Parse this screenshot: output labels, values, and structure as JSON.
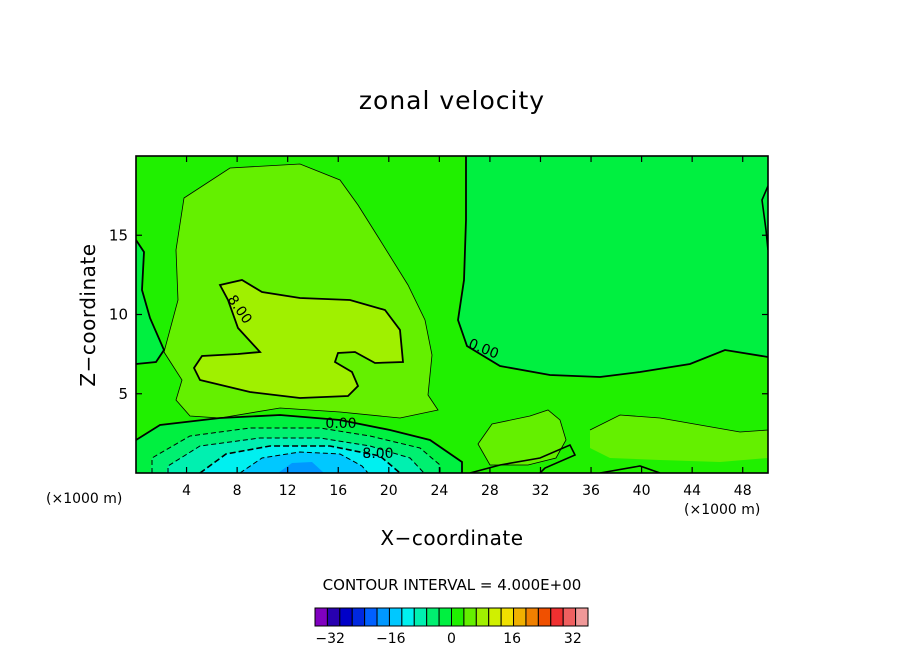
{
  "chart_data": {
    "type": "heatmap",
    "title": "zonal velocity",
    "xlabel": "X−coordinate",
    "ylabel": "Z−coordinate",
    "x_unit_left": "(×1000 m)",
    "x_unit_right": "(×1000 m)",
    "xlim": [
      0,
      50
    ],
    "ylim": [
      0,
      20
    ],
    "xticks": [
      4,
      8,
      12,
      16,
      20,
      24,
      28,
      32,
      36,
      40,
      44,
      48
    ],
    "yticks": [
      5,
      10,
      15
    ],
    "contour_interval_text": "CONTOUR INTERVAL = 4.000E+00",
    "contour_labels": [
      "8.00",
      "0.00",
      "0.00",
      "8.00"
    ],
    "colorbar": {
      "min": -36,
      "max": 36,
      "step": 4,
      "tick_values": [
        -32,
        -16,
        0,
        16,
        32
      ],
      "tick_labels": [
        "−32",
        "−16",
        "0",
        "16",
        "32"
      ],
      "colors": [
        "#8000c0",
        "#2800b0",
        "#0000c8",
        "#0028e0",
        "#0060ff",
        "#0098ff",
        "#00c8ff",
        "#00f0f0",
        "#00f0b0",
        "#00f070",
        "#00f040",
        "#20f000",
        "#64f000",
        "#a0f000",
        "#d0f000",
        "#f0e000",
        "#f0b000",
        "#f08000",
        "#f05000",
        "#f03030",
        "#f06060",
        "#f09898"
      ]
    }
  }
}
